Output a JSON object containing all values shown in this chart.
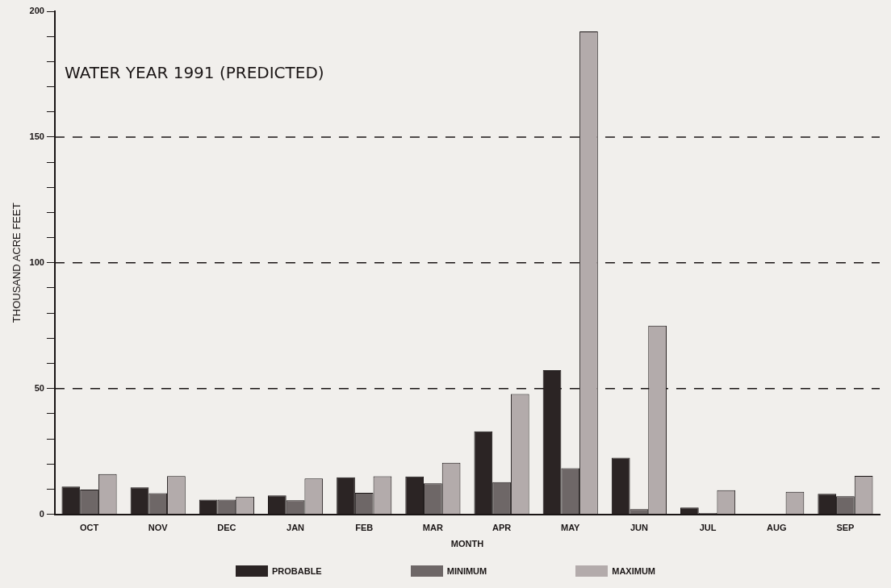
{
  "chart_data": {
    "type": "bar",
    "title": "WATER YEAR 1991 (PREDICTED)",
    "xlabel": "MONTH",
    "ylabel": "THOUSAND ACRE FEET",
    "categories": [
      "OCT",
      "NOV",
      "DEC",
      "JAN",
      "FEB",
      "MAR",
      "APR",
      "MAY",
      "JUN",
      "JUL",
      "AUG",
      "SEP"
    ],
    "series": [
      {
        "name": "PROBABLE",
        "color": "#2b2424",
        "values": [
          11,
          10.7,
          5.8,
          7.5,
          14.7,
          15,
          33,
          57.3,
          22.5,
          2.7,
          0,
          8.1
        ]
      },
      {
        "name": "MINIMUM",
        "color": "#6e6767",
        "values": [
          9.8,
          8.4,
          5.8,
          5.6,
          8.5,
          12.3,
          12.8,
          18.3,
          2,
          0.5,
          0,
          7.2
        ]
      },
      {
        "name": "MAXIMUM",
        "color": "#b3abab",
        "values": [
          16,
          15.2,
          7,
          14.2,
          15.1,
          20.5,
          47.8,
          192,
          75,
          9.6,
          8.9,
          15.3
        ]
      }
    ],
    "ylim": [
      0,
      200
    ],
    "yticks": [
      0,
      {
        "value": 10,
        "label": null
      },
      {
        "value": 20,
        "label": null
      },
      {
        "value": 30,
        "label": null
      },
      {
        "value": 40,
        "label": null
      },
      50,
      {
        "value": 60,
        "label": null
      },
      {
        "value": 70,
        "label": null
      },
      {
        "value": 80,
        "label": null
      },
      {
        "value": 90,
        "label": null
      },
      100,
      {
        "value": 110,
        "label": null
      },
      {
        "value": 120,
        "label": null
      },
      {
        "value": 130,
        "label": null
      },
      {
        "value": 140,
        "label": null
      },
      150,
      {
        "value": 160,
        "label": null
      },
      {
        "value": 170,
        "label": null
      },
      {
        "value": 180,
        "label": null
      },
      {
        "value": 190,
        "label": null
      },
      200
    ],
    "grid": "y",
    "legend": "bottom"
  }
}
